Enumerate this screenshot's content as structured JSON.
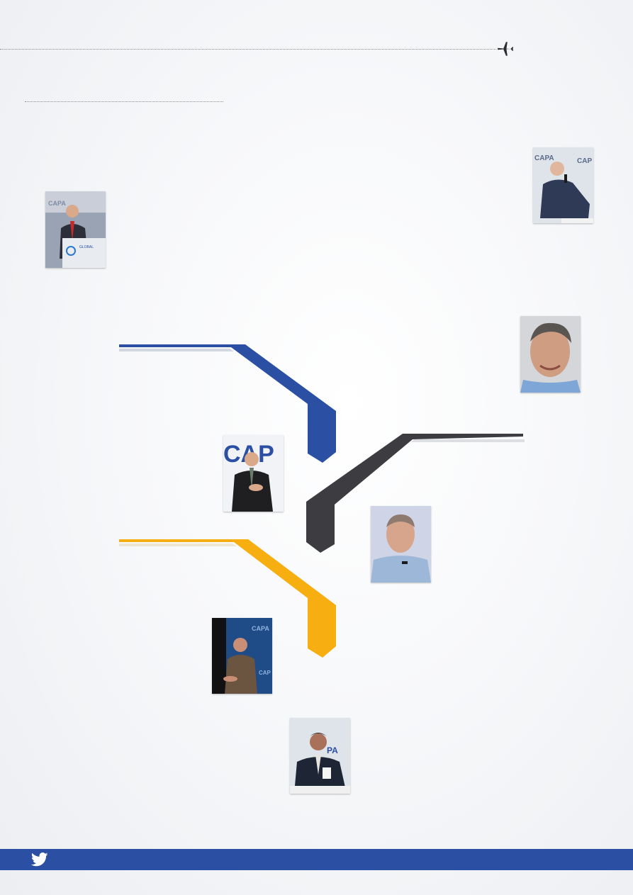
{
  "colors": {
    "blue": "#2a4fa3",
    "dark": "#3d3d41",
    "yellow": "#f7ae10",
    "footer": "#2a4fa3"
  },
  "icons": {
    "plane": "airplane-icon",
    "social": "twitter-icon"
  },
  "photos": [
    {
      "id": "speaker-podium",
      "kind": "photo"
    },
    {
      "id": "speaker-seated-mic",
      "kind": "photo"
    },
    {
      "id": "speaker-portrait",
      "kind": "photo"
    },
    {
      "id": "speaker-standing",
      "kind": "photo"
    },
    {
      "id": "speaker-blue-shirt",
      "kind": "photo"
    },
    {
      "id": "speaker-lectern",
      "kind": "photo"
    },
    {
      "id": "speaker-panel",
      "kind": "photo"
    }
  ]
}
